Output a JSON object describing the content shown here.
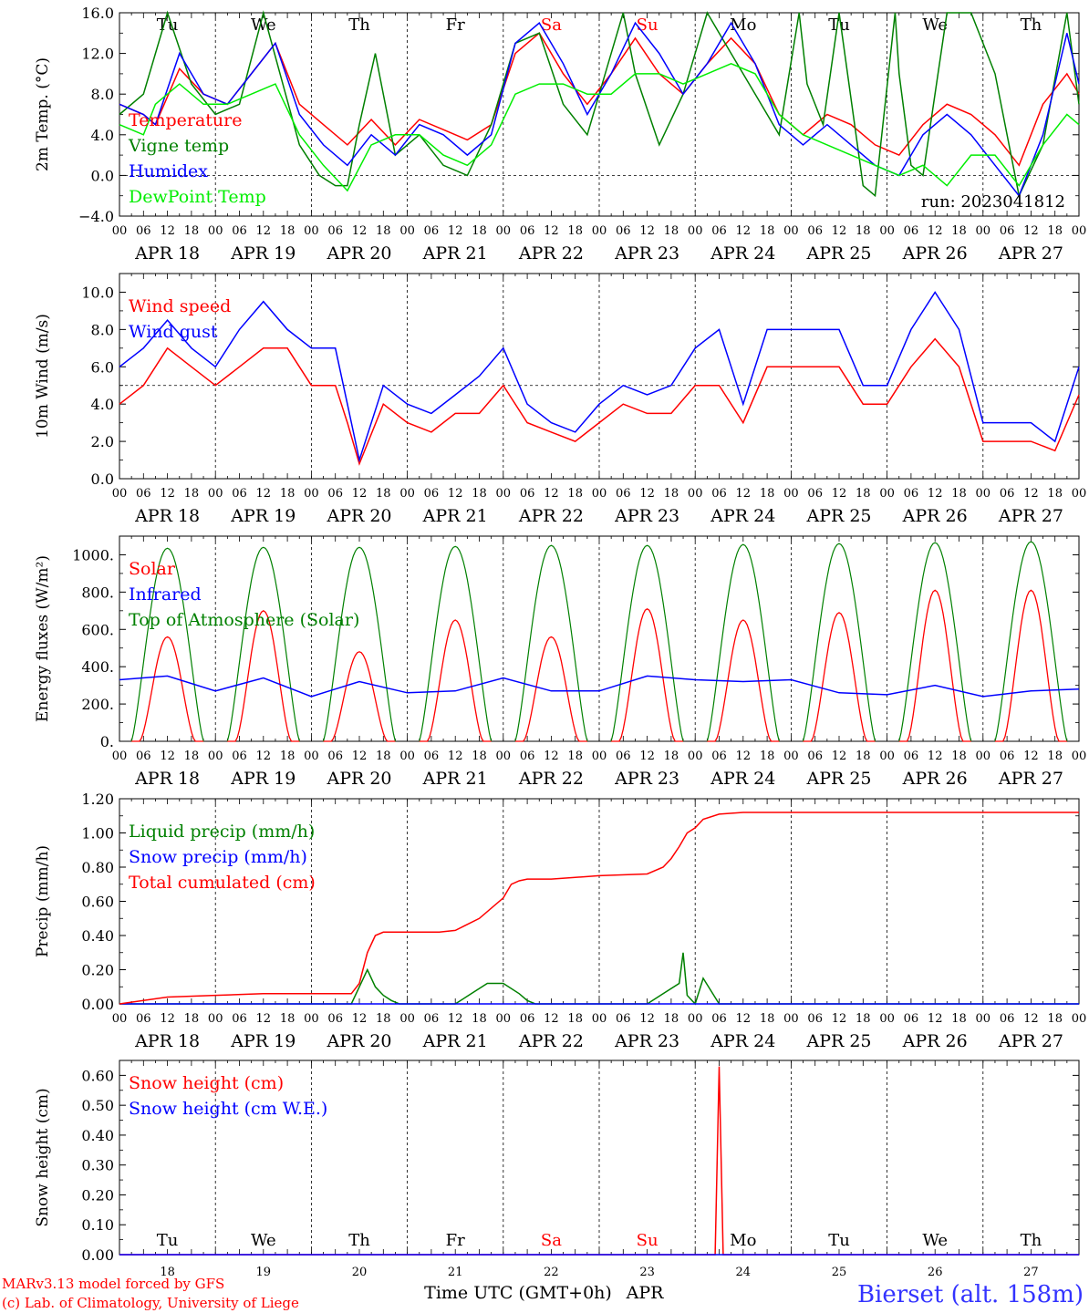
{
  "x_ticks": [
    "00",
    "06",
    "12",
    "18"
  ],
  "date_labels": [
    "APR 18",
    "APR 19",
    "APR 20",
    "APR 21",
    "APR 22",
    "APR 23",
    "APR 24",
    "APR 25",
    "APR 26",
    "APR 27"
  ],
  "weekdays": [
    {
      "label": "Tu",
      "color": "#000000"
    },
    {
      "label": "We",
      "color": "#000000"
    },
    {
      "label": "Th",
      "color": "#000000"
    },
    {
      "label": "Fr",
      "color": "#000000"
    },
    {
      "label": "Sa",
      "color": "#ff0000"
    },
    {
      "label": "Su",
      "color": "#ff0000"
    },
    {
      "label": "Mo",
      "color": "#000000"
    },
    {
      "label": "Tu",
      "color": "#000000"
    },
    {
      "label": "We",
      "color": "#000000"
    },
    {
      "label": "Th",
      "color": "#000000"
    }
  ],
  "day_numbers": [
    "18",
    "19",
    "20",
    "21",
    "22",
    "23",
    "24",
    "25",
    "26",
    "27"
  ],
  "footer": {
    "credit1": "MARv3.13 model forced by GFS",
    "credit2": "(c) Lab. of Climatology, University of Liege",
    "xlabel": "Time UTC (GMT+0h)",
    "month": "APR",
    "station": "Bierset (alt. 158m)"
  },
  "chart_data": [
    {
      "type": "line",
      "ylabel": "2m Temp. (°C)",
      "ylim": [
        -4,
        16
      ],
      "yticks": [
        "−4.0",
        "0.0",
        "4.0",
        "8.0",
        "12.0",
        "16.0"
      ],
      "ytick_values": [
        -4,
        0,
        4,
        8,
        12,
        16
      ],
      "ref_line": 0,
      "annotation": "run: 2023041812",
      "x_unit": "hours since APR 18 00 UTC",
      "series": [
        {
          "name": "Temperature",
          "color": "#ff0000",
          "x": [
            0,
            6,
            9,
            15,
            21,
            27,
            33,
            39,
            45,
            51,
            57,
            63,
            69,
            75,
            81,
            87,
            93,
            99,
            105,
            111,
            117,
            123,
            129,
            135,
            141,
            147,
            153,
            159,
            165,
            171,
            177,
            183,
            189,
            195,
            201,
            207,
            213,
            219,
            225,
            231,
            237,
            240
          ],
          "values": [
            7,
            6,
            5,
            10.5,
            8,
            7,
            10,
            13,
            7,
            5,
            3,
            5.5,
            3,
            5.5,
            4.5,
            3.5,
            5,
            12,
            14,
            10,
            7,
            10,
            13.5,
            10,
            8,
            11,
            13.5,
            11,
            6,
            4,
            6,
            5,
            3,
            2,
            5,
            7,
            6,
            4,
            1,
            7,
            10,
            8
          ]
        },
        {
          "name": "Vigne temp",
          "color": "#008000",
          "x": [
            0,
            6,
            12,
            18,
            24,
            30,
            36,
            45,
            50,
            54,
            57,
            60,
            64,
            69,
            75,
            81,
            87,
            93,
            99,
            105,
            111,
            117,
            123,
            126,
            129,
            135,
            141,
            147,
            153,
            159,
            165,
            170,
            172,
            176,
            180,
            186,
            189,
            194,
            195,
            198,
            201,
            207,
            213,
            219,
            225,
            231,
            237,
            240
          ],
          "values": [
            6,
            8,
            16,
            9,
            6,
            7,
            16,
            3,
            0,
            -1,
            -1,
            5,
            12,
            2,
            4,
            1,
            0,
            5,
            13,
            14,
            7,
            4,
            12,
            16,
            10,
            3,
            8,
            16,
            12,
            8,
            4,
            16,
            9,
            5,
            16,
            -1,
            -2,
            16,
            10,
            1,
            0,
            16,
            16,
            10,
            -2,
            3,
            16,
            7
          ]
        },
        {
          "name": "Humidex",
          "color": "#0000ff",
          "x": [
            0,
            6,
            9,
            15,
            21,
            27,
            33,
            39,
            45,
            51,
            57,
            63,
            69,
            75,
            81,
            87,
            93,
            99,
            105,
            111,
            117,
            123,
            129,
            135,
            141,
            147,
            153,
            159,
            165,
            171,
            177,
            183,
            189,
            195,
            201,
            207,
            213,
            219,
            225,
            231,
            237,
            240
          ],
          "values": [
            7,
            6,
            5,
            12,
            8,
            7,
            10,
            13,
            6,
            3,
            1,
            4,
            2,
            5,
            4,
            2,
            4,
            13,
            15,
            11,
            6,
            10,
            15,
            12,
            8,
            11,
            15,
            11,
            5,
            3,
            5,
            3,
            1,
            0,
            4,
            6,
            4,
            1,
            -2,
            4,
            14,
            9
          ]
        },
        {
          "name": "DewPoint Temp",
          "color": "#00ee00",
          "x": [
            0,
            6,
            9,
            15,
            21,
            27,
            33,
            39,
            45,
            51,
            57,
            63,
            69,
            75,
            81,
            87,
            93,
            99,
            105,
            111,
            117,
            123,
            129,
            135,
            141,
            147,
            153,
            159,
            165,
            171,
            177,
            183,
            189,
            195,
            201,
            207,
            213,
            219,
            225,
            231,
            237,
            240
          ],
          "values": [
            5,
            4,
            7,
            9,
            7,
            7,
            8,
            9,
            4,
            1,
            -1.5,
            3,
            4,
            4,
            2,
            1,
            3,
            8,
            9,
            9,
            8,
            8,
            10,
            10,
            9,
            10,
            11,
            10,
            6,
            4,
            3,
            2,
            1,
            0,
            1,
            -1,
            2,
            2,
            -1,
            3,
            6,
            5
          ]
        }
      ]
    },
    {
      "type": "line",
      "ylabel": "10m Wind (m/s)",
      "ylim": [
        0,
        11
      ],
      "yticks": [
        "0.0",
        "2.0",
        "4.0",
        "6.0",
        "8.0",
        "10.0"
      ],
      "ytick_values": [
        0,
        2,
        4,
        6,
        8,
        10
      ],
      "ref_line": 5,
      "x_unit": "hours since APR 18 00 UTC",
      "series": [
        {
          "name": "Wind speed",
          "color": "#ff0000",
          "x": [
            0,
            6,
            12,
            18,
            24,
            30,
            36,
            42,
            48,
            54,
            57,
            60,
            66,
            72,
            78,
            84,
            90,
            96,
            102,
            108,
            114,
            120,
            126,
            132,
            138,
            144,
            150,
            156,
            162,
            168,
            174,
            180,
            186,
            192,
            198,
            204,
            210,
            216,
            222,
            228,
            234,
            240
          ],
          "values": [
            4,
            5,
            7,
            6,
            5,
            6,
            7,
            7,
            5,
            5,
            3,
            0.8,
            4,
            3,
            2.5,
            3.5,
            3.5,
            5,
            3,
            2.5,
            2,
            3,
            4,
            3.5,
            3.5,
            5,
            5,
            3,
            6,
            6,
            6,
            6,
            4,
            4,
            6,
            7.5,
            6,
            2,
            2,
            2,
            1.5,
            4.5
          ]
        },
        {
          "name": "Wind gust",
          "color": "#0000ff",
          "x": [
            0,
            6,
            12,
            18,
            24,
            30,
            36,
            42,
            48,
            54,
            57,
            60,
            66,
            72,
            78,
            84,
            90,
            96,
            102,
            108,
            114,
            120,
            126,
            132,
            138,
            144,
            150,
            156,
            162,
            168,
            174,
            180,
            186,
            192,
            198,
            204,
            210,
            216,
            222,
            228,
            234,
            240
          ],
          "values": [
            6,
            7,
            8.5,
            7,
            6,
            8,
            9.5,
            8,
            7,
            7,
            4,
            1,
            5,
            4,
            3.5,
            4.5,
            5.5,
            7,
            4,
            3,
            2.5,
            4,
            5,
            4.5,
            5,
            7,
            8,
            4,
            8,
            8,
            8,
            8,
            5,
            5,
            8,
            10,
            8,
            3,
            3,
            3,
            2,
            6
          ]
        }
      ]
    },
    {
      "type": "line",
      "ylabel": "Energy fluxes (W/m²)",
      "ylim": [
        0,
        1100
      ],
      "yticks": [
        "0.",
        "200.",
        "400.",
        "600.",
        "800.",
        "1000."
      ],
      "ytick_values": [
        0,
        200,
        400,
        600,
        800,
        1000
      ],
      "x_unit": "hours since APR 18 00 UTC",
      "toa_peaks": [
        1035,
        1040,
        1040,
        1045,
        1050,
        1050,
        1055,
        1060,
        1065,
        1070
      ],
      "solar_peaks": [
        560,
        700,
        480,
        650,
        560,
        710,
        650,
        690,
        810,
        810
      ],
      "series": [
        {
          "name": "Solar",
          "color": "#ff0000"
        },
        {
          "name": "Infrared",
          "color": "#0000ff",
          "x": [
            0,
            12,
            24,
            36,
            48,
            60,
            72,
            84,
            96,
            108,
            120,
            132,
            144,
            156,
            168,
            180,
            192,
            204,
            216,
            228,
            240
          ],
          "values": [
            330,
            350,
            270,
            340,
            240,
            320,
            260,
            270,
            340,
            270,
            270,
            350,
            330,
            320,
            330,
            260,
            250,
            300,
            240,
            270,
            280
          ]
        },
        {
          "name": "Top of Atmosphere (Solar)",
          "color": "#008000"
        }
      ]
    },
    {
      "type": "line",
      "ylabel": "Precip (mm/h)",
      "ylim": [
        0,
        1.2
      ],
      "yticks": [
        "0.00",
        "0.20",
        "0.40",
        "0.60",
        "0.80",
        "1.00",
        "1.20"
      ],
      "ytick_values": [
        0,
        0.2,
        0.4,
        0.6,
        0.8,
        1.0,
        1.2
      ],
      "x_unit": "hours since APR 18 00 UTC",
      "series": [
        {
          "name": "Liquid precip (mm/h)",
          "color": "#008000",
          "x": [
            0,
            58,
            60,
            62,
            64,
            66,
            68,
            70,
            84,
            88,
            92,
            96,
            100,
            102,
            104,
            120,
            132,
            136,
            140,
            141,
            142,
            144,
            146,
            150,
            240
          ],
          "values": [
            0,
            0,
            0.1,
            0.2,
            0.1,
            0.05,
            0.02,
            0,
            0,
            0.06,
            0.12,
            0.12,
            0.06,
            0.02,
            0,
            0,
            0,
            0.06,
            0.12,
            0.3,
            0.05,
            0,
            0.15,
            0,
            0
          ]
        },
        {
          "name": "Snow precip (mm/h)",
          "color": "#0000ff",
          "x": [
            0,
            240
          ],
          "values": [
            0,
            0
          ]
        },
        {
          "name": "Total cumulated (cm)",
          "color": "#ff0000",
          "x": [
            0,
            6,
            12,
            24,
            36,
            48,
            58,
            60,
            62,
            64,
            66,
            68,
            72,
            80,
            84,
            90,
            96,
            98,
            100,
            102,
            108,
            120,
            132,
            136,
            138,
            140,
            142,
            144,
            146,
            150,
            156,
            240
          ],
          "values": [
            0,
            0.02,
            0.04,
            0.05,
            0.06,
            0.06,
            0.06,
            0.12,
            0.3,
            0.4,
            0.42,
            0.42,
            0.42,
            0.42,
            0.43,
            0.5,
            0.62,
            0.7,
            0.72,
            0.73,
            0.73,
            0.75,
            0.76,
            0.8,
            0.85,
            0.92,
            1.0,
            1.03,
            1.08,
            1.11,
            1.12,
            1.12
          ]
        }
      ]
    },
    {
      "type": "line",
      "ylabel": "Snow height (cm)",
      "ylim": [
        0,
        0.65
      ],
      "yticks": [
        "0.00",
        "0.10",
        "0.20",
        "0.30",
        "0.40",
        "0.50",
        "0.60"
      ],
      "ytick_values": [
        0,
        0.1,
        0.2,
        0.3,
        0.4,
        0.5,
        0.6
      ],
      "x_unit": "hours since APR 18 00 UTC",
      "series": [
        {
          "name": "Snow height (cm)",
          "color": "#ff0000",
          "x": [
            0,
            149,
            150,
            151,
            240
          ],
          "values": [
            0,
            0,
            0.63,
            0,
            0
          ]
        },
        {
          "name": "Snow height (cm W.E.)",
          "color": "#0000ff",
          "x": [
            0,
            240
          ],
          "values": [
            0,
            0
          ]
        }
      ]
    }
  ]
}
